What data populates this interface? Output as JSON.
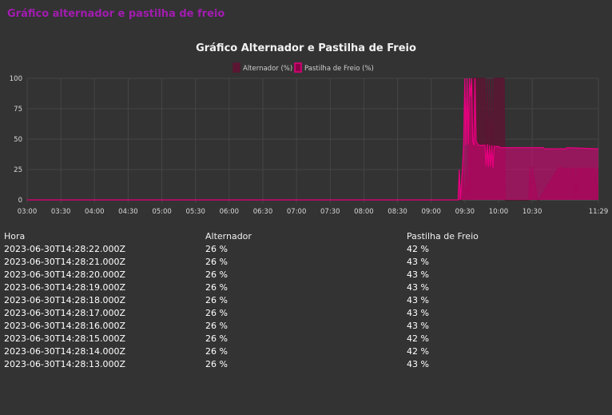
{
  "page": {
    "title": "Gráfico alternador e pastilha de freio"
  },
  "colors": {
    "accent": "#a21caf",
    "alternador": "#5a1632",
    "pastilha": "#e6007e",
    "background": "#333333",
    "grid": "#454545"
  },
  "chart_data": {
    "type": "area",
    "title": "Gráfico Alternador e Pastilha de Freio",
    "xlabel": "",
    "ylabel": "",
    "ylim": [
      0,
      100
    ],
    "yticks": [
      "0",
      "25",
      "50",
      "75",
      "100"
    ],
    "x_tick_labels": [
      "03:00",
      "03:30",
      "04:00",
      "04:30",
      "05:00",
      "05:30",
      "06:00",
      "06:30",
      "07:00",
      "07:30",
      "08:00",
      "08:30",
      "09:00",
      "09:30",
      "10:00",
      "10:30",
      "11:29"
    ],
    "x_ticks_min": [
      180,
      210,
      240,
      270,
      300,
      330,
      360,
      390,
      420,
      450,
      480,
      510,
      540,
      570,
      600,
      630,
      689
    ],
    "xlim_min": [
      180,
      689
    ],
    "grid": true,
    "legend_position": "top-center",
    "series": [
      {
        "name": "Alternador (%)",
        "color": "#5a1632",
        "x_min": [
          180,
          563,
          567,
          568,
          570,
          571,
          573,
          574,
          575,
          576,
          577,
          588,
          589,
          590,
          591,
          592,
          593,
          594,
          595,
          596,
          605,
          606,
          627,
          628,
          629,
          630,
          635,
          636,
          653,
          654,
          655,
          656,
          668,
          669,
          670,
          686,
          687,
          688,
          689
        ],
        "values": [
          0,
          0,
          0,
          25,
          0,
          28,
          0,
          100,
          0,
          100,
          100,
          100,
          28,
          100,
          27,
          100,
          28,
          100,
          26,
          100,
          100,
          0,
          0,
          27,
          0,
          27,
          0,
          0,
          26,
          26,
          27,
          26,
          26,
          0,
          26,
          26,
          0,
          26,
          26
        ]
      },
      {
        "name": "Pastilha de Freio (%)",
        "color": "#e6007e",
        "x_min": [
          180,
          563,
          564,
          565,
          566,
          568,
          569,
          570,
          571,
          572,
          573,
          574,
          575,
          576,
          577,
          578,
          579,
          580,
          582,
          588,
          589,
          590,
          591,
          592,
          593,
          594,
          595,
          596,
          600,
          601,
          610,
          611,
          640,
          641,
          660,
          661,
          689
        ],
        "values": [
          0,
          0,
          0,
          25,
          0,
          28,
          48,
          100,
          45,
          100,
          46,
          100,
          85,
          100,
          48,
          45,
          100,
          48,
          45,
          45,
          28,
          46,
          27,
          45,
          28,
          45,
          26,
          44,
          44,
          43,
          43,
          43,
          43,
          42,
          42,
          43,
          42
        ]
      }
    ]
  },
  "table": {
    "headers": [
      "Hora",
      "Alternador",
      "Pastilha de Freio"
    ],
    "rows": [
      [
        "2023-06-30T14:28:22.000Z",
        "26 %",
        "42 %"
      ],
      [
        "2023-06-30T14:28:21.000Z",
        "26 %",
        "43 %"
      ],
      [
        "2023-06-30T14:28:20.000Z",
        "26 %",
        "43 %"
      ],
      [
        "2023-06-30T14:28:19.000Z",
        "26 %",
        "43 %"
      ],
      [
        "2023-06-30T14:28:18.000Z",
        "26 %",
        "43 %"
      ],
      [
        "2023-06-30T14:28:17.000Z",
        "26 %",
        "43 %"
      ],
      [
        "2023-06-30T14:28:16.000Z",
        "26 %",
        "43 %"
      ],
      [
        "2023-06-30T14:28:15.000Z",
        "26 %",
        "42 %"
      ],
      [
        "2023-06-30T14:28:14.000Z",
        "26 %",
        "42 %"
      ],
      [
        "2023-06-30T14:28:13.000Z",
        "26 %",
        "43 %"
      ]
    ]
  }
}
